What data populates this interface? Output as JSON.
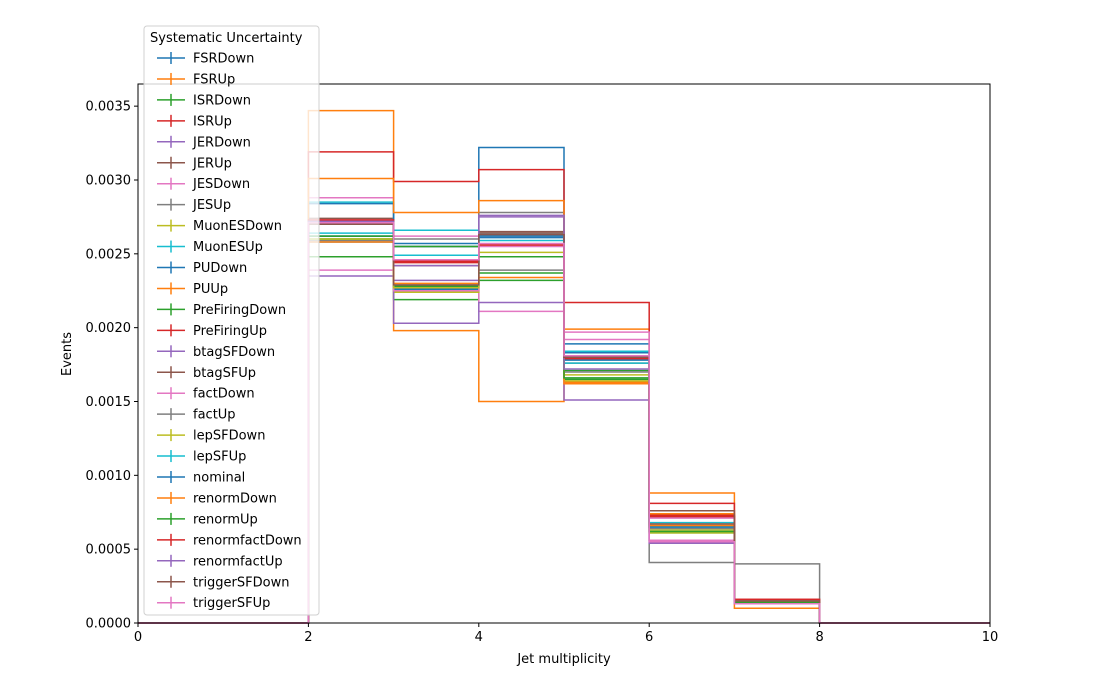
{
  "chart_data": {
    "type": "line",
    "title": "",
    "xlabel": "Jet multiplicity",
    "ylabel": "Events",
    "xlim": [
      0,
      10
    ],
    "ylim": [
      0,
      0.00365
    ],
    "xticks": [
      "0",
      "2",
      "4",
      "6",
      "8",
      "10"
    ],
    "yticks": [
      "0.0000",
      "0.0005",
      "0.0010",
      "0.0015",
      "0.0020",
      "0.0025",
      "0.0030",
      "0.0035"
    ],
    "grid": false,
    "legend": {
      "title": "Systematic Uncertainty",
      "placement": "top-left"
    },
    "bin_edges": [
      0,
      1,
      2,
      3,
      4,
      5,
      6,
      7,
      8,
      9,
      10
    ],
    "series": [
      {
        "name": "FSRDown",
        "color": "#1f77b4",
        "values": [
          0,
          0,
          0.00258,
          0.00226,
          0.00322,
          0.00189,
          0.00062,
          0.00014,
          0,
          0
        ]
      },
      {
        "name": "FSRUp",
        "color": "#ff7f0e",
        "values": [
          0,
          0,
          0.00347,
          0.00198,
          0.0015,
          0.00163,
          0.00088,
          0.0001,
          0,
          0
        ]
      },
      {
        "name": "ISRDown",
        "color": "#2ca02c",
        "values": [
          0,
          0,
          0.00248,
          0.00219,
          0.00232,
          0.00171,
          0.00061,
          0.00014,
          0,
          0
        ]
      },
      {
        "name": "ISRUp",
        "color": "#d62728",
        "values": [
          0,
          0,
          0.00319,
          0.00299,
          0.00307,
          0.00179,
          0.00081,
          0.00016,
          0,
          0
        ]
      },
      {
        "name": "JERDown",
        "color": "#9467bd",
        "values": [
          0,
          0,
          0.0027,
          0.00232,
          0.00275,
          0.00179,
          0.00056,
          0.00014,
          0,
          0
        ]
      },
      {
        "name": "JERUp",
        "color": "#8c564b",
        "values": [
          0,
          0,
          0.00274,
          0.00242,
          0.00264,
          0.00183,
          0.00072,
          0.00015,
          0,
          0
        ]
      },
      {
        "name": "JESDown",
        "color": "#e377c2",
        "values": [
          0,
          0,
          0.00288,
          0.00262,
          0.00211,
          0.00192,
          0.00056,
          0.00014,
          0,
          0
        ]
      },
      {
        "name": "JESUp",
        "color": "#7f7f7f",
        "values": [
          0,
          0,
          0.00259,
          0.0026,
          0.00278,
          0.00179,
          0.00041,
          0.0004,
          0,
          0
        ]
      },
      {
        "name": "MuonESDown",
        "color": "#bcbd22",
        "values": [
          0,
          0,
          0.0026,
          0.00224,
          0.00248,
          0.00168,
          0.00063,
          0.00014,
          0,
          0
        ]
      },
      {
        "name": "MuonESUp",
        "color": "#17becf",
        "values": [
          0,
          0,
          0.00285,
          0.00266,
          0.00263,
          0.00184,
          0.00068,
          0.00015,
          0,
          0
        ]
      },
      {
        "name": "PUDown",
        "color": "#1f77b4",
        "values": [
          0,
          0,
          0.00284,
          0.00257,
          0.00261,
          0.00183,
          0.00066,
          0.00014,
          0,
          0
        ]
      },
      {
        "name": "PUUp",
        "color": "#ff7f0e",
        "values": [
          0,
          0,
          0.00301,
          0.00278,
          0.00286,
          0.00199,
          0.00074,
          0.00015,
          0,
          0
        ]
      },
      {
        "name": "PreFiringDown",
        "color": "#2ca02c",
        "values": [
          0,
          0,
          0.0026,
          0.00228,
          0.00237,
          0.00165,
          0.00065,
          0.00014,
          0,
          0
        ]
      },
      {
        "name": "PreFiringUp",
        "color": "#d62728",
        "values": [
          0,
          0,
          0.00273,
          0.00244,
          0.00256,
          0.00217,
          0.00072,
          0.00015,
          0,
          0
        ]
      },
      {
        "name": "btagSFDown",
        "color": "#9467bd",
        "values": [
          0,
          0,
          0.00235,
          0.00203,
          0.00217,
          0.00151,
          0.00055,
          0.00013,
          0,
          0
        ]
      },
      {
        "name": "btagSFUp",
        "color": "#8c564b",
        "values": [
          0,
          0,
          0.00272,
          0.00245,
          0.00265,
          0.00176,
          0.00067,
          0.00015,
          0,
          0
        ]
      },
      {
        "name": "factDown",
        "color": "#e377c2",
        "values": [
          0,
          0,
          0.00239,
          0.00225,
          0.00255,
          0.00197,
          0.00071,
          0.00015,
          0,
          0
        ]
      },
      {
        "name": "factUp",
        "color": "#7f7f7f",
        "values": [
          0,
          0,
          0.00262,
          0.00255,
          0.00239,
          0.0017,
          0.00064,
          0.00014,
          0,
          0
        ]
      },
      {
        "name": "lepSFDown",
        "color": "#bcbd22",
        "values": [
          0,
          0,
          0.0026,
          0.00227,
          0.00251,
          0.00164,
          0.00061,
          0.00014,
          0,
          0
        ]
      },
      {
        "name": "lepSFUp",
        "color": "#17becf",
        "values": [
          0,
          0,
          0.00264,
          0.00249,
          0.00259,
          0.00176,
          0.00065,
          0.00014,
          0,
          0
        ]
      },
      {
        "name": "nominal",
        "color": "#1f77b4",
        "values": [
          0,
          0,
          0.00262,
          0.00255,
          0.00262,
          0.00178,
          0.00065,
          0.00014,
          0,
          0
        ]
      },
      {
        "name": "renormDown",
        "color": "#ff7f0e",
        "values": [
          0,
          0,
          0.00258,
          0.0023,
          0.00234,
          0.00162,
          0.00066,
          0.00014,
          0,
          0
        ]
      },
      {
        "name": "renormUp",
        "color": "#2ca02c",
        "values": [
          0,
          0,
          0.00262,
          0.00255,
          0.00248,
          0.00166,
          0.00062,
          0.00014,
          0,
          0
        ]
      },
      {
        "name": "renormfactDown",
        "color": "#d62728",
        "values": [
          0,
          0,
          0.00272,
          0.00245,
          0.00256,
          0.00179,
          0.00073,
          0.00016,
          0,
          0
        ]
      },
      {
        "name": "renormfactUp",
        "color": "#9467bd",
        "values": [
          0,
          0,
          0.00272,
          0.00242,
          0.00276,
          0.00172,
          0.00054,
          0.00013,
          0,
          0
        ]
      },
      {
        "name": "triggerSFDown",
        "color": "#8c564b",
        "values": [
          0,
          0,
          0.0027,
          0.00229,
          0.00263,
          0.0018,
          0.00076,
          0.00015,
          0,
          0
        ]
      },
      {
        "name": "triggerSFUp",
        "color": "#e377c2",
        "values": [
          0,
          0,
          0.00271,
          0.00246,
          0.00257,
          0.00181,
          0.00055,
          0.00013,
          0,
          0
        ]
      }
    ]
  }
}
